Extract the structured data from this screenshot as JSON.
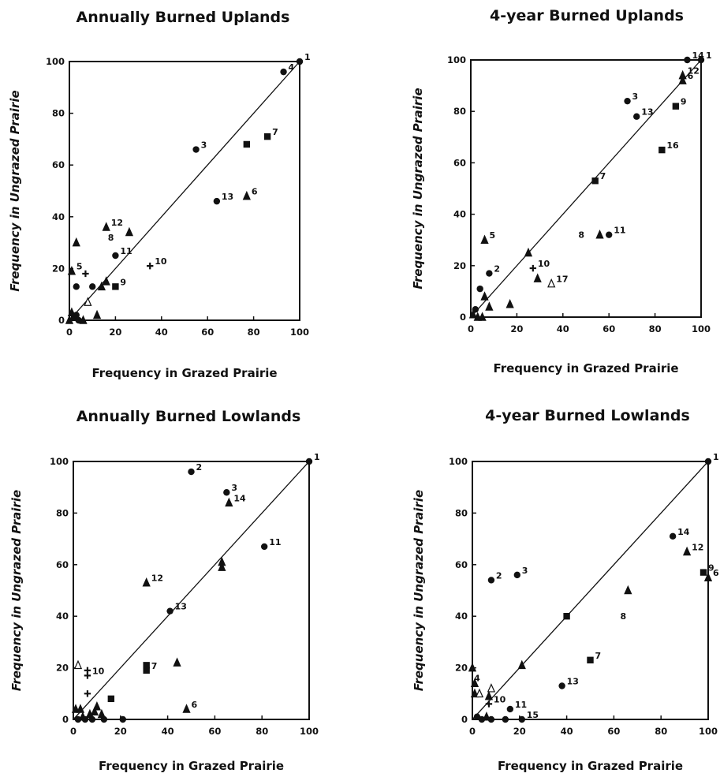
{
  "chart_data": [
    {
      "type": "scatter",
      "title": "Annually Burned Uplands",
      "xlabel": "Frequency in Grazed Prairie",
      "ylabel": "Frequency in Ungrazed Prairie",
      "xlim": [
        0,
        100
      ],
      "ylim": [
        0,
        100
      ],
      "xticks": [
        0,
        20,
        40,
        60,
        80,
        100
      ],
      "yticks": [
        0,
        20,
        40,
        60,
        80,
        100
      ],
      "reference_line": "y = x",
      "points": [
        {
          "x": 100,
          "y": 100,
          "m": "circle",
          "label": "1"
        },
        {
          "x": 93,
          "y": 96,
          "m": "circle",
          "label": "4"
        },
        {
          "x": 55,
          "y": 66,
          "m": "circle",
          "label": "3"
        },
        {
          "x": 77,
          "y": 68,
          "m": "square",
          "label": ""
        },
        {
          "x": 86,
          "y": 71,
          "m": "square",
          "label": "7"
        },
        {
          "x": 64,
          "y": 46,
          "m": "circle",
          "label": "13"
        },
        {
          "x": 77,
          "y": 48,
          "m": "triangle",
          "label": "6"
        },
        {
          "x": 16,
          "y": 36,
          "m": "triangle",
          "label": "12"
        },
        {
          "x": 26,
          "y": 34,
          "m": "triangle",
          "label": ""
        },
        {
          "x": 3,
          "y": 30,
          "m": "triangle",
          "label": ""
        },
        {
          "x": 20,
          "y": 25,
          "m": "circle",
          "label": "11"
        },
        {
          "x": 35,
          "y": 21,
          "m": "plus",
          "label": "10"
        },
        {
          "x": 1,
          "y": 19,
          "m": "triangle",
          "label": "5"
        },
        {
          "x": 7,
          "y": 18,
          "m": "plus",
          "label": ""
        },
        {
          "x": 3,
          "y": 13,
          "m": "circle",
          "label": ""
        },
        {
          "x": 10,
          "y": 13,
          "m": "circle",
          "label": ""
        },
        {
          "x": 14,
          "y": 13,
          "m": "triangle",
          "label": ""
        },
        {
          "x": 16,
          "y": 15,
          "m": "triangle",
          "label": ""
        },
        {
          "x": 20,
          "y": 13,
          "m": "square",
          "label": "9"
        },
        {
          "x": 8,
          "y": 7,
          "m": "open-triangle",
          "label": ""
        },
        {
          "x": 12,
          "y": 2,
          "m": "triangle",
          "label": ""
        },
        {
          "x": 1,
          "y": 3,
          "m": "triangle",
          "label": ""
        },
        {
          "x": 2,
          "y": 1,
          "m": "circle",
          "label": ""
        },
        {
          "x": 3,
          "y": 2,
          "m": "circle",
          "label": ""
        },
        {
          "x": 4,
          "y": 0,
          "m": "circle",
          "label": ""
        },
        {
          "x": 6,
          "y": 0,
          "m": "triangle",
          "label": ""
        },
        {
          "x": 0,
          "y": 0,
          "m": "triangle",
          "label": ""
        }
      ],
      "annotations": [
        {
          "x": 18,
          "y": 32,
          "text": "8"
        }
      ]
    },
    {
      "type": "scatter",
      "title": "4-year Burned Uplands",
      "xlabel": "Frequency in Grazed Prairie",
      "ylabel": "Frequency in Ungrazed Prairie",
      "xlim": [
        0,
        100
      ],
      "ylim": [
        0,
        100
      ],
      "xticks": [
        0,
        20,
        40,
        60,
        80,
        100
      ],
      "yticks": [
        0,
        20,
        40,
        60,
        80,
        100
      ],
      "reference_line": "y = x",
      "points": [
        {
          "x": 100,
          "y": 100,
          "m": "circle",
          "label": "1"
        },
        {
          "x": 94,
          "y": 100,
          "m": "circle",
          "label": "14"
        },
        {
          "x": 92,
          "y": 94,
          "m": "triangle",
          "label": "12"
        },
        {
          "x": 92,
          "y": 92,
          "m": "triangle",
          "label": "6"
        },
        {
          "x": 68,
          "y": 84,
          "m": "circle",
          "label": "3"
        },
        {
          "x": 89,
          "y": 82,
          "m": "square",
          "label": "9"
        },
        {
          "x": 72,
          "y": 78,
          "m": "circle",
          "label": "13"
        },
        {
          "x": 83,
          "y": 65,
          "m": "square",
          "label": "16"
        },
        {
          "x": 54,
          "y": 53,
          "m": "square",
          "label": "7"
        },
        {
          "x": 56,
          "y": 32,
          "m": "triangle",
          "label": ""
        },
        {
          "x": 60,
          "y": 32,
          "m": "circle",
          "label": "11"
        },
        {
          "x": 6,
          "y": 30,
          "m": "triangle",
          "label": "5"
        },
        {
          "x": 25,
          "y": 25,
          "m": "triangle",
          "label": ""
        },
        {
          "x": 27,
          "y": 19,
          "m": "plus",
          "label": "10"
        },
        {
          "x": 8,
          "y": 17,
          "m": "circle",
          "label": "2"
        },
        {
          "x": 29,
          "y": 15,
          "m": "triangle",
          "label": ""
        },
        {
          "x": 35,
          "y": 13,
          "m": "open-triangle",
          "label": "17"
        },
        {
          "x": 4,
          "y": 11,
          "m": "circle",
          "label": ""
        },
        {
          "x": 6,
          "y": 8,
          "m": "triangle",
          "label": ""
        },
        {
          "x": 8,
          "y": 4,
          "m": "triangle",
          "label": ""
        },
        {
          "x": 17,
          "y": 5,
          "m": "triangle",
          "label": ""
        },
        {
          "x": 2,
          "y": 3,
          "m": "circle",
          "label": ""
        },
        {
          "x": 1,
          "y": 1,
          "m": "triangle",
          "label": ""
        },
        {
          "x": 3,
          "y": 0,
          "m": "triangle",
          "label": ""
        },
        {
          "x": 5,
          "y": 0,
          "m": "triangle",
          "label": ""
        }
      ],
      "annotations": [
        {
          "x": 48,
          "y": 32,
          "text": "8"
        }
      ]
    },
    {
      "type": "scatter",
      "title": "Annually Burned Lowlands",
      "xlabel": "Frequency in Grazed Prairie",
      "ylabel": "Frequency in Ungrazed Prairie",
      "xlim": [
        0,
        100
      ],
      "ylim": [
        0,
        100
      ],
      "xticks": [
        0,
        20,
        40,
        60,
        80,
        100
      ],
      "yticks": [
        0,
        20,
        40,
        60,
        80,
        100
      ],
      "reference_line": "y = x",
      "points": [
        {
          "x": 100,
          "y": 100,
          "m": "circle",
          "label": "1"
        },
        {
          "x": 50,
          "y": 96,
          "m": "circle",
          "label": "2"
        },
        {
          "x": 65,
          "y": 88,
          "m": "circle",
          "label": "3"
        },
        {
          "x": 66,
          "y": 84,
          "m": "triangle",
          "label": "14"
        },
        {
          "x": 81,
          "y": 67,
          "m": "circle",
          "label": "11"
        },
        {
          "x": 63,
          "y": 61,
          "m": "triangle",
          "label": ""
        },
        {
          "x": 63,
          "y": 59,
          "m": "triangle",
          "label": ""
        },
        {
          "x": 31,
          "y": 53,
          "m": "triangle",
          "label": "12"
        },
        {
          "x": 41,
          "y": 42,
          "m": "circle",
          "label": "13"
        },
        {
          "x": 31,
          "y": 21,
          "m": "square",
          "label": ""
        },
        {
          "x": 31,
          "y": 19,
          "m": "square",
          "label": "7"
        },
        {
          "x": 44,
          "y": 22,
          "m": "triangle",
          "label": ""
        },
        {
          "x": 2,
          "y": 21,
          "m": "open-triangle",
          "label": ""
        },
        {
          "x": 6,
          "y": 19,
          "m": "plus",
          "label": ""
        },
        {
          "x": 6,
          "y": 17,
          "m": "plus",
          "label": "10"
        },
        {
          "x": 6,
          "y": 10,
          "m": "plus",
          "label": ""
        },
        {
          "x": 16,
          "y": 8,
          "m": "square",
          "label": ""
        },
        {
          "x": 10,
          "y": 5,
          "m": "triangle",
          "label": ""
        },
        {
          "x": 48,
          "y": 4,
          "m": "triangle",
          "label": "6"
        },
        {
          "x": 1,
          "y": 4,
          "m": "triangle",
          "label": ""
        },
        {
          "x": 3,
          "y": 4,
          "m": "triangle",
          "label": ""
        },
        {
          "x": 4,
          "y": 1,
          "m": "triangle",
          "label": ""
        },
        {
          "x": 7,
          "y": 2,
          "m": "triangle",
          "label": ""
        },
        {
          "x": 9,
          "y": 3,
          "m": "triangle",
          "label": ""
        },
        {
          "x": 12,
          "y": 2,
          "m": "triangle",
          "label": ""
        },
        {
          "x": 2,
          "y": 0,
          "m": "circle",
          "label": ""
        },
        {
          "x": 5,
          "y": 0,
          "m": "circle",
          "label": ""
        },
        {
          "x": 8,
          "y": 0,
          "m": "circle",
          "label": ""
        },
        {
          "x": 13,
          "y": 0,
          "m": "circle",
          "label": ""
        },
        {
          "x": 21,
          "y": 0,
          "m": "circle",
          "label": ""
        }
      ],
      "annotations": []
    },
    {
      "type": "scatter",
      "title": "4-year Burned Lowlands",
      "xlabel": "Frequency in Grazed Prairie",
      "ylabel": "Frequency in Ungrazed Prairie",
      "xlim": [
        0,
        100
      ],
      "ylim": [
        0,
        100
      ],
      "xticks": [
        0,
        20,
        40,
        60,
        80,
        100
      ],
      "yticks": [
        0,
        20,
        40,
        60,
        80,
        100
      ],
      "reference_line": "y = x",
      "points": [
        {
          "x": 100,
          "y": 100,
          "m": "circle",
          "label": "1"
        },
        {
          "x": 85,
          "y": 71,
          "m": "circle",
          "label": "14"
        },
        {
          "x": 91,
          "y": 65,
          "m": "triangle",
          "label": "12"
        },
        {
          "x": 98,
          "y": 57,
          "m": "square",
          "label": "9"
        },
        {
          "x": 100,
          "y": 55,
          "m": "triangle",
          "label": "6"
        },
        {
          "x": 8,
          "y": 54,
          "m": "circle",
          "label": "2"
        },
        {
          "x": 19,
          "y": 56,
          "m": "circle",
          "label": "3"
        },
        {
          "x": 66,
          "y": 50,
          "m": "triangle",
          "label": ""
        },
        {
          "x": 40,
          "y": 40,
          "m": "square",
          "label": ""
        },
        {
          "x": 50,
          "y": 23,
          "m": "square",
          "label": "7"
        },
        {
          "x": 21,
          "y": 21,
          "m": "triangle",
          "label": ""
        },
        {
          "x": 38,
          "y": 13,
          "m": "circle",
          "label": "13"
        },
        {
          "x": 0,
          "y": 20,
          "m": "triangle",
          "label": ""
        },
        {
          "x": 1,
          "y": 14,
          "m": "triangle",
          "label": ""
        },
        {
          "x": 1,
          "y": 10,
          "m": "triangle",
          "label": ""
        },
        {
          "x": 3,
          "y": 10,
          "m": "open-triangle",
          "label": ""
        },
        {
          "x": 8,
          "y": 12,
          "m": "open-triangle",
          "label": ""
        },
        {
          "x": 7,
          "y": 9,
          "m": "triangle",
          "label": ""
        },
        {
          "x": 7,
          "y": 6,
          "m": "plus",
          "label": "10"
        },
        {
          "x": 16,
          "y": 4,
          "m": "circle",
          "label": "11"
        },
        {
          "x": 21,
          "y": 0,
          "m": "circle",
          "label": "15"
        },
        {
          "x": 2,
          "y": 1,
          "m": "circle",
          "label": ""
        },
        {
          "x": 4,
          "y": 0,
          "m": "circle",
          "label": ""
        },
        {
          "x": 6,
          "y": 1,
          "m": "triangle",
          "label": ""
        },
        {
          "x": 8,
          "y": 0,
          "m": "circle",
          "label": ""
        },
        {
          "x": 14,
          "y": 0,
          "m": "circle",
          "label": ""
        }
      ],
      "annotations": [
        {
          "x": 2,
          "y": 16,
          "text": "4"
        },
        {
          "x": 64,
          "y": 40,
          "text": "8"
        }
      ]
    }
  ]
}
